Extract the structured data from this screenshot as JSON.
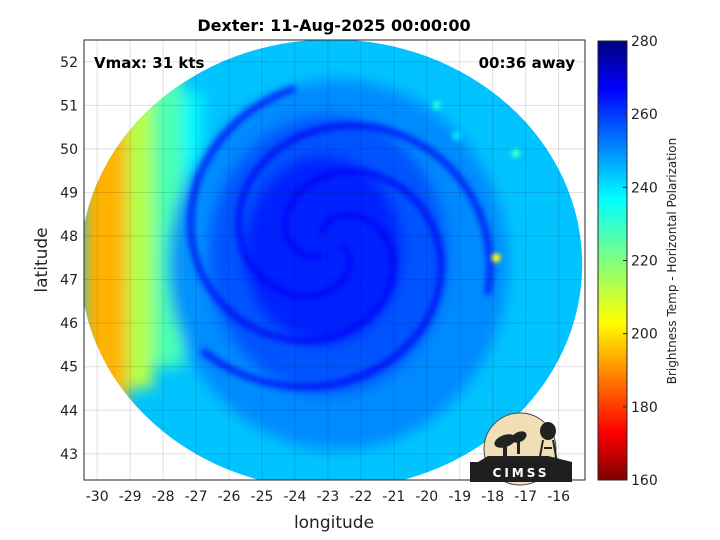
{
  "chart_data": {
    "type": "heatmap",
    "title": "Dexter: 11-Aug-2025 00:00:00",
    "xlabel": "longitude",
    "ylabel": "latitude",
    "xlim": [
      -30.4,
      -15.2
    ],
    "ylim": [
      42.4,
      52.5
    ],
    "xticks": [
      -30,
      -29,
      -28,
      -27,
      -26,
      -25,
      -24,
      -23,
      -22,
      -21,
      -20,
      -19,
      -18,
      -17,
      -16
    ],
    "yticks": [
      43,
      44,
      45,
      46,
      47,
      48,
      49,
      50,
      51,
      52
    ],
    "grid": true,
    "annotations": {
      "vmax": "Vmax: 31 kts",
      "time_away": "00:36 away"
    },
    "colorbar": {
      "label": "Brightness Temp - Horizontal Polarization",
      "range": [
        160,
        280
      ],
      "ticks": [
        160,
        180,
        200,
        220,
        240,
        260,
        280
      ],
      "colormap": "jet",
      "placement": "right"
    },
    "field": {
      "center": {
        "lon": -23.0,
        "lat": 47.8
      },
      "swath_center": {
        "lon": -22.9,
        "lat": 47.35
      },
      "background_value": 242,
      "core_value": 262,
      "west_edge_value": 196
    },
    "cold_spots": [
      {
        "lon": -17.9,
        "lat": 47.5,
        "value": 205
      },
      {
        "lon": -17.3,
        "lat": 49.9,
        "value": 228
      },
      {
        "lon": -19.7,
        "lat": 51.0,
        "value": 232
      },
      {
        "lon": -19.1,
        "lat": 50.3,
        "value": 238
      }
    ]
  },
  "logo": {
    "text": "CIMSS"
  }
}
